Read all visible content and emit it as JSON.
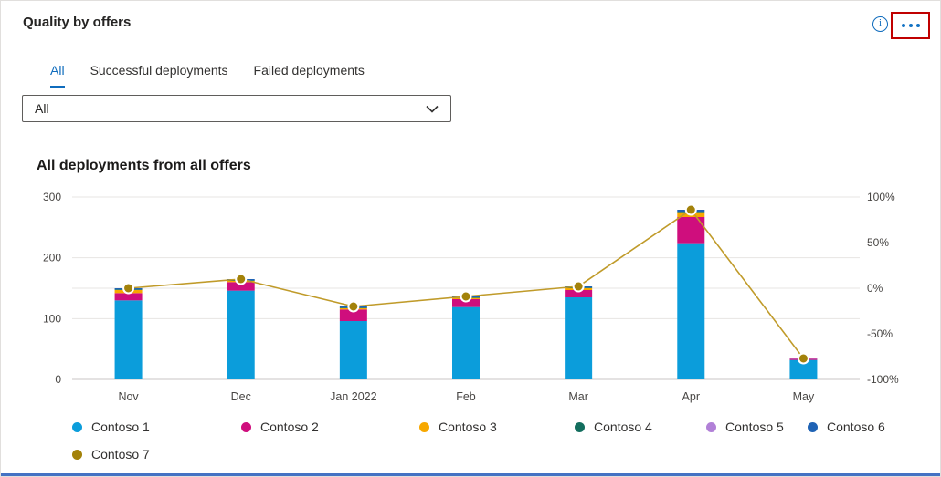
{
  "header": {
    "title": "Quality by offers",
    "info_icon_glyph": "i",
    "icons": {
      "info": "info-circle-icon",
      "more": "ellipsis-icon",
      "dropdown": "chevron-down-icon"
    }
  },
  "tabs": [
    {
      "label": "All",
      "selected": true
    },
    {
      "label": "Successful deployments",
      "selected": false
    },
    {
      "label": "Failed deployments",
      "selected": false
    }
  ],
  "filter": {
    "value": "All"
  },
  "colors": {
    "accent_blue": "#0f6cbd",
    "icon_blue": "#1373c4",
    "highlight_red": "#c00000",
    "bottom_accent_blue": "#4472c4",
    "gridline": "#e7e5e3",
    "axis_text": "#484644"
  },
  "chart_data": {
    "type": "bar",
    "subtype": "stacked-bars-with-trend-line",
    "title": "All deployments from all offers",
    "categories": [
      "Nov",
      "Dec",
      "Jan 2022",
      "Feb",
      "Mar",
      "Apr",
      "May"
    ],
    "series": [
      {
        "name": "Contoso 1",
        "color": "#0b9ddb",
        "values": [
          130,
          146,
          96,
          119,
          135,
          224,
          32
        ]
      },
      {
        "name": "Contoso 2",
        "color": "#cf0e7d",
        "values": [
          12,
          14,
          19,
          13,
          12,
          43,
          2
        ]
      },
      {
        "name": "Contoso 3",
        "color": "#f7a800",
        "values": [
          5,
          2,
          2,
          2,
          3,
          8,
          0
        ]
      },
      {
        "name": "Contoso 4",
        "color": "#136e5e",
        "values": [
          1,
          1,
          1,
          1,
          1,
          1,
          0
        ]
      },
      {
        "name": "Contoso 5",
        "color": "#b180d7",
        "values": [
          0,
          0,
          0,
          0,
          0,
          0,
          1
        ]
      },
      {
        "name": "Contoso 6",
        "color": "#1f63b5",
        "values": [
          2,
          2,
          2,
          2,
          2,
          3,
          0
        ]
      }
    ],
    "line_series": {
      "name": "Contoso 7",
      "color": "#a3820a",
      "line_color": "#c09b2a",
      "axis": "right",
      "unit": "%",
      "values": [
        0,
        10,
        -20,
        -9,
        2,
        86,
        -77
      ]
    },
    "totals": [
      150,
      165,
      120,
      137,
      153,
      279,
      35
    ],
    "left_axis": {
      "min": 0,
      "max": 300,
      "ticks": [
        0,
        100,
        200,
        300
      ]
    },
    "right_axis": {
      "min": -100,
      "max": 100,
      "tick_labels": [
        "-100%",
        "-50%",
        "0%",
        "50%",
        "100%"
      ],
      "tick_values": [
        -100,
        -50,
        0,
        50,
        100
      ]
    },
    "grid": true,
    "legend_position": "bottom"
  }
}
